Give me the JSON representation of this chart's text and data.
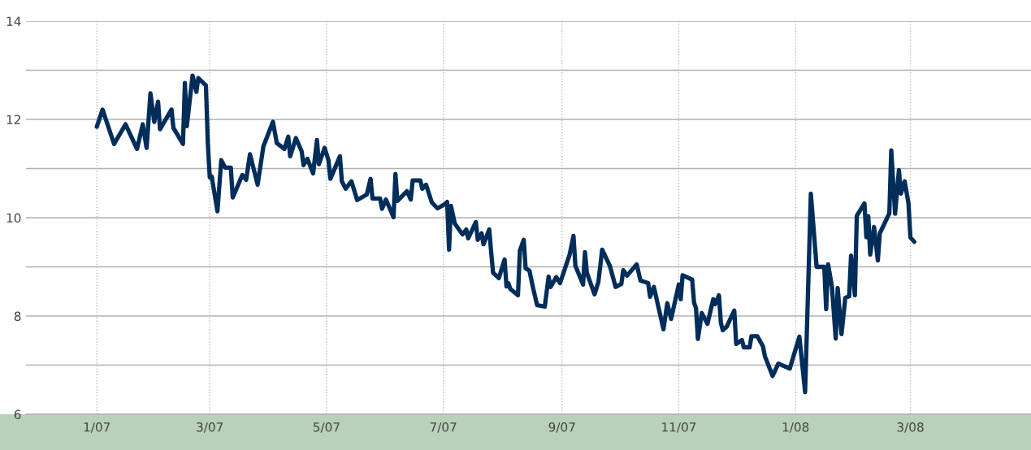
{
  "chart_data": {
    "type": "line",
    "x": [
      "2007-01-01",
      "2007-01-04",
      "2007-01-10",
      "2007-01-16",
      "2007-01-22",
      "2007-01-25",
      "2007-01-27",
      "2007-01-29",
      "2007-01-31",
      "2007-02-02",
      "2007-02-03",
      "2007-02-09",
      "2007-02-10",
      "2007-02-15",
      "2007-02-16",
      "2007-02-17",
      "2007-02-20",
      "2007-02-22",
      "2007-02-23",
      "2007-02-27",
      "2007-02-28",
      "2007-03-01",
      "2007-03-02",
      "2007-03-05",
      "2007-03-07",
      "2007-03-09",
      "2007-03-12",
      "2007-03-13",
      "2007-03-18",
      "2007-03-20",
      "2007-03-22",
      "2007-03-26",
      "2007-03-29",
      "2007-04-03",
      "2007-04-05",
      "2007-04-09",
      "2007-04-11",
      "2007-04-12",
      "2007-04-15",
      "2007-04-18",
      "2007-04-19",
      "2007-04-21",
      "2007-04-24",
      "2007-04-26",
      "2007-04-27",
      "2007-04-30",
      "2007-05-02",
      "2007-05-03",
      "2007-05-08",
      "2007-05-09",
      "2007-05-11",
      "2007-05-14",
      "2007-05-17",
      "2007-05-22",
      "2007-05-24",
      "2007-05-25",
      "2007-05-29",
      "2007-05-30",
      "2007-06-01",
      "2007-06-05",
      "2007-06-06",
      "2007-06-07",
      "2007-06-12",
      "2007-06-14",
      "2007-06-15",
      "2007-06-19",
      "2007-06-20",
      "2007-06-22",
      "2007-06-25",
      "2007-06-28",
      "2007-07-02",
      "2007-07-03",
      "2007-07-04",
      "2007-07-05",
      "2007-07-07",
      "2007-07-11",
      "2007-07-13",
      "2007-07-14",
      "2007-07-18",
      "2007-07-19",
      "2007-07-21",
      "2007-07-22",
      "2007-07-25",
      "2007-07-26",
      "2007-07-27",
      "2007-07-30",
      "2007-08-02",
      "2007-08-03",
      "2007-08-04",
      "2007-08-05",
      "2007-08-09",
      "2007-08-10",
      "2007-08-12",
      "2007-08-13",
      "2007-08-15",
      "2007-08-17",
      "2007-08-19",
      "2007-08-23",
      "2007-08-25",
      "2007-08-26",
      "2007-08-29",
      "2007-08-31",
      "2007-09-03",
      "2007-09-05",
      "2007-09-07",
      "2007-09-08",
      "2007-09-12",
      "2007-09-13",
      "2007-09-14",
      "2007-09-18",
      "2007-09-20",
      "2007-09-21",
      "2007-09-22",
      "2007-09-26",
      "2007-09-29",
      "2007-10-02",
      "2007-10-03",
      "2007-10-05",
      "2007-10-10",
      "2007-10-12",
      "2007-10-16",
      "2007-10-17",
      "2007-10-19",
      "2007-10-24",
      "2007-10-26",
      "2007-10-28",
      "2007-11-01",
      "2007-11-02",
      "2007-11-03",
      "2007-11-08",
      "2007-11-09",
      "2007-11-10",
      "2007-11-11",
      "2007-11-13",
      "2007-11-16",
      "2007-11-19",
      "2007-11-20",
      "2007-11-22",
      "2007-11-23",
      "2007-11-24",
      "2007-11-26",
      "2007-11-30",
      "2007-12-01",
      "2007-12-04",
      "2007-12-05",
      "2007-12-08",
      "2007-12-09",
      "2007-12-12",
      "2007-12-15",
      "2007-12-16",
      "2007-12-20",
      "2007-12-23",
      "2007-12-29",
      "2008-01-03",
      "2008-01-06",
      "2008-01-09",
      "2008-01-12",
      "2008-01-16",
      "2008-01-17",
      "2008-01-18",
      "2008-01-20",
      "2008-01-22",
      "2008-01-23",
      "2008-01-25",
      "2008-01-27",
      "2008-01-29",
      "2008-01-30",
      "2008-02-01",
      "2008-02-02",
      "2008-02-06",
      "2008-02-07",
      "2008-02-08",
      "2008-02-09",
      "2008-02-11",
      "2008-02-13",
      "2008-02-14",
      "2008-02-19",
      "2008-02-20",
      "2008-02-22",
      "2008-02-24",
      "2008-02-25",
      "2008-02-27",
      "2008-02-29",
      "2008-03-01",
      "2008-03-03"
    ],
    "series": [
      {
        "color": "#002d5a",
        "values": [
          11.85,
          12.2,
          11.5,
          11.9,
          11.4,
          11.9,
          11.42,
          12.53,
          11.95,
          12.36,
          11.8,
          12.2,
          11.83,
          11.5,
          12.74,
          11.86,
          12.89,
          12.56,
          12.84,
          12.69,
          11.5,
          10.82,
          10.84,
          10.13,
          11.17,
          11.02,
          11.02,
          10.41,
          10.87,
          10.77,
          11.29,
          10.67,
          11.45,
          11.95,
          11.52,
          11.4,
          11.65,
          11.25,
          11.62,
          11.35,
          11.07,
          11.2,
          10.9,
          11.58,
          11.09,
          11.42,
          11.17,
          10.79,
          11.25,
          10.74,
          10.59,
          10.74,
          10.36,
          10.47,
          10.79,
          10.39,
          10.39,
          10.18,
          10.37,
          10.01,
          10.89,
          10.34,
          10.54,
          10.37,
          10.76,
          10.76,
          10.59,
          10.67,
          10.31,
          10.19,
          10.28,
          10.32,
          9.35,
          10.24,
          9.88,
          9.66,
          9.76,
          9.58,
          9.91,
          9.55,
          9.68,
          9.46,
          9.76,
          9.3,
          8.88,
          8.77,
          9.15,
          8.6,
          8.67,
          8.55,
          8.42,
          9.33,
          9.55,
          8.97,
          8.92,
          8.55,
          8.22,
          8.19,
          8.8,
          8.59,
          8.79,
          8.67,
          9.02,
          9.25,
          9.63,
          9.02,
          8.64,
          9.3,
          8.88,
          8.44,
          8.69,
          9.02,
          9.35,
          9.02,
          8.59,
          8.65,
          8.93,
          8.82,
          9.05,
          8.72,
          8.67,
          8.39,
          8.59,
          7.73,
          8.26,
          7.94,
          8.64,
          8.34,
          8.83,
          8.74,
          8.27,
          8.16,
          7.53,
          8.06,
          7.84,
          8.34,
          8.24,
          8.42,
          7.86,
          7.71,
          7.78,
          8.11,
          7.43,
          7.51,
          7.36,
          7.36,
          7.59,
          7.59,
          7.38,
          7.18,
          6.78,
          7.03,
          6.93,
          7.58,
          6.45,
          10.49,
          9.0,
          9.0,
          8.14,
          9.05,
          8.6,
          7.54,
          8.57,
          7.63,
          8.37,
          8.4,
          9.23,
          8.42,
          10.04,
          10.29,
          9.6,
          10.03,
          9.25,
          9.81,
          9.13,
          9.68,
          10.09,
          11.37,
          10.08,
          10.97,
          10.49,
          10.74,
          10.29,
          9.6,
          9.51
        ]
      }
    ],
    "xlim": [
      "2006-11-25",
      "2008-05-03"
    ],
    "xticks": [
      {
        "value": "2007-01-01",
        "label": "1/07"
      },
      {
        "value": "2007-03-01",
        "label": "3/07"
      },
      {
        "value": "2007-05-01",
        "label": "5/07"
      },
      {
        "value": "2007-07-01",
        "label": "7/07"
      },
      {
        "value": "2007-09-01",
        "label": "9/07"
      },
      {
        "value": "2007-11-01",
        "label": "11/07"
      },
      {
        "value": "2008-01-01",
        "label": "1/08"
      },
      {
        "value": "2008-03-01",
        "label": "3/08"
      }
    ],
    "ylim": [
      6,
      14
    ],
    "yticks": [
      6,
      {
        "value": 7,
        "label": null
      },
      8,
      {
        "value": 9,
        "label": null
      },
      10,
      {
        "value": 11,
        "label": null
      },
      12,
      {
        "value": 13,
        "label": null
      },
      14
    ],
    "grid": true,
    "legend": false,
    "marker": "none",
    "line_style": "solid"
  }
}
